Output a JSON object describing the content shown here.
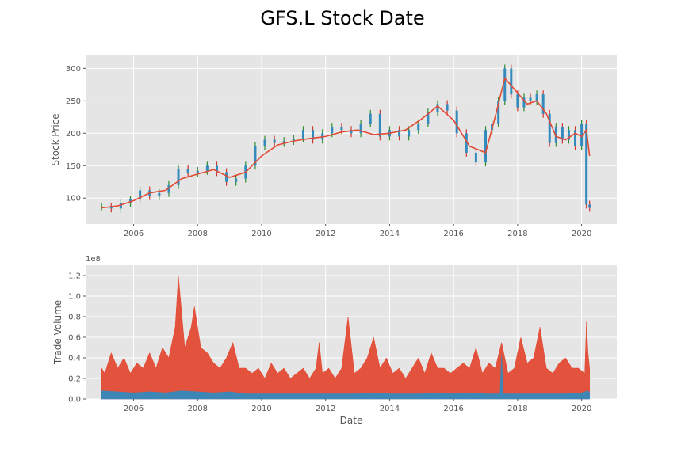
{
  "figure": {
    "title": "GFS.L Stock Date"
  },
  "chart_data": [
    {
      "type": "line",
      "title": "",
      "xlabel": "",
      "ylabel": "Stock Price",
      "xlim": [
        2004.5,
        2021.1
      ],
      "ylim": [
        60,
        320
      ],
      "grid": true,
      "x_ticks": [
        "2006",
        "2008",
        "2010",
        "2012",
        "2014",
        "2016",
        "2018",
        "2020"
      ],
      "y_ticks": [
        "100",
        "150",
        "200",
        "250",
        "300"
      ],
      "series": [
        {
          "style": "candlestick",
          "color_up": "#2e8b2e",
          "color_down": "#d0342c",
          "color_body": "#348abd",
          "x": [
            2005.0,
            2005.3,
            2005.6,
            2005.9,
            2006.2,
            2006.5,
            2006.8,
            2007.1,
            2007.4,
            2007.7,
            2008.0,
            2008.3,
            2008.6,
            2008.9,
            2009.2,
            2009.5,
            2009.8,
            2010.1,
            2010.4,
            2010.7,
            2011.0,
            2011.3,
            2011.6,
            2011.9,
            2012.2,
            2012.5,
            2012.8,
            2013.1,
            2013.4,
            2013.7,
            2014.0,
            2014.3,
            2014.6,
            2014.9,
            2015.2,
            2015.5,
            2015.8,
            2016.1,
            2016.4,
            2016.7,
            2017.0,
            2017.2,
            2017.4,
            2017.6,
            2017.8,
            2018.0,
            2018.2,
            2018.4,
            2018.6,
            2018.8,
            2019.0,
            2019.2,
            2019.4,
            2019.6,
            2019.8,
            2020.0,
            2020.15,
            2020.25
          ],
          "y": [
            87,
            84,
            92,
            98,
            112,
            103,
            108,
            120,
            145,
            138,
            142,
            150,
            140,
            125,
            130,
            150,
            180,
            190,
            185,
            188,
            192,
            205,
            190,
            200,
            210,
            205,
            200,
            215,
            230,
            195,
            205,
            195,
            205,
            215,
            232,
            245,
            235,
            200,
            170,
            155,
            205,
            215,
            250,
            300,
            260,
            240,
            255,
            250,
            260,
            230,
            185,
            210,
            190,
            205,
            180,
            215,
            90,
            85
          ]
        },
        {
          "name": "",
          "style": "moving-average",
          "color": "#e24a33",
          "x": [
            2005.0,
            2005.5,
            2006.0,
            2006.5,
            2007.0,
            2007.5,
            2008.0,
            2008.5,
            2009.0,
            2009.5,
            2010.0,
            2010.5,
            2011.0,
            2011.5,
            2012.0,
            2012.5,
            2013.0,
            2013.5,
            2014.0,
            2014.5,
            2015.0,
            2015.5,
            2016.0,
            2016.5,
            2017.0,
            2017.3,
            2017.6,
            2018.0,
            2018.3,
            2018.6,
            2018.9,
            2019.2,
            2019.5,
            2019.8,
            2020.0,
            2020.15,
            2020.25
          ],
          "y": [
            85,
            88,
            96,
            108,
            112,
            130,
            137,
            144,
            132,
            140,
            165,
            182,
            188,
            192,
            195,
            202,
            205,
            198,
            200,
            205,
            222,
            242,
            220,
            180,
            170,
            225,
            285,
            262,
            245,
            250,
            230,
            195,
            190,
            200,
            195,
            205,
            165
          ]
        }
      ]
    },
    {
      "type": "area",
      "title": "",
      "xlabel": "Date",
      "ylabel": "Trade Volume",
      "offset_label": "1e8",
      "xlim": [
        2004.5,
        2021.1
      ],
      "ylim": [
        0,
        1.3
      ],
      "grid": true,
      "x_ticks": [
        "2006",
        "2008",
        "2010",
        "2012",
        "2014",
        "2016",
        "2018",
        "2020"
      ],
      "y_ticks": [
        "0.0",
        "0.2",
        "0.4",
        "0.6",
        "0.8",
        "1.0",
        "1.2"
      ],
      "series": [
        {
          "name": "",
          "color": "#e24a33",
          "x": [
            2005.0,
            2005.1,
            2005.3,
            2005.5,
            2005.7,
            2005.9,
            2006.1,
            2006.3,
            2006.5,
            2006.7,
            2006.9,
            2007.1,
            2007.3,
            2007.4,
            2007.6,
            2007.8,
            2007.9,
            2008.1,
            2008.3,
            2008.5,
            2008.7,
            2008.9,
            2009.1,
            2009.3,
            2009.5,
            2009.7,
            2009.9,
            2010.1,
            2010.3,
            2010.5,
            2010.7,
            2010.9,
            2011.1,
            2011.3,
            2011.5,
            2011.7,
            2011.8,
            2011.9,
            2012.1,
            2012.3,
            2012.5,
            2012.7,
            2012.9,
            2013.1,
            2013.3,
            2013.5,
            2013.7,
            2013.9,
            2014.1,
            2014.3,
            2014.5,
            2014.7,
            2014.9,
            2015.1,
            2015.3,
            2015.5,
            2015.7,
            2015.9,
            2016.1,
            2016.3,
            2016.5,
            2016.7,
            2016.9,
            2017.1,
            2017.3,
            2017.5,
            2017.7,
            2017.9,
            2018.1,
            2018.3,
            2018.5,
            2018.7,
            2018.9,
            2019.1,
            2019.3,
            2019.5,
            2019.7,
            2019.9,
            2020.1,
            2020.15,
            2020.2,
            2020.25
          ],
          "y": [
            0.3,
            0.25,
            0.45,
            0.3,
            0.4,
            0.25,
            0.35,
            0.3,
            0.45,
            0.3,
            0.5,
            0.4,
            0.7,
            1.2,
            0.5,
            0.7,
            0.9,
            0.5,
            0.45,
            0.35,
            0.3,
            0.4,
            0.55,
            0.3,
            0.3,
            0.25,
            0.3,
            0.2,
            0.35,
            0.25,
            0.3,
            0.2,
            0.25,
            0.3,
            0.2,
            0.3,
            0.55,
            0.25,
            0.3,
            0.2,
            0.3,
            0.8,
            0.25,
            0.3,
            0.4,
            0.6,
            0.3,
            0.4,
            0.25,
            0.3,
            0.2,
            0.3,
            0.4,
            0.25,
            0.45,
            0.3,
            0.3,
            0.25,
            0.3,
            0.35,
            0.3,
            0.5,
            0.25,
            0.35,
            0.3,
            0.55,
            0.25,
            0.3,
            0.6,
            0.35,
            0.4,
            0.7,
            0.3,
            0.25,
            0.35,
            0.4,
            0.3,
            0.3,
            0.25,
            0.75,
            0.45,
            0.3
          ]
        },
        {
          "name": "",
          "color": "#348abd",
          "x": [
            2005.0,
            2005.5,
            2006.0,
            2006.5,
            2007.0,
            2007.5,
            2008.0,
            2008.5,
            2009.0,
            2009.5,
            2010.0,
            2010.5,
            2011.0,
            2011.5,
            2012.0,
            2012.5,
            2013.0,
            2013.5,
            2014.0,
            2014.5,
            2015.0,
            2015.5,
            2016.0,
            2016.5,
            2017.0,
            2017.45,
            2017.5,
            2017.55,
            2018.0,
            2018.5,
            2019.0,
            2019.5,
            2020.0,
            2020.2,
            2020.25
          ],
          "y": [
            0.08,
            0.07,
            0.06,
            0.07,
            0.06,
            0.08,
            0.07,
            0.06,
            0.07,
            0.05,
            0.05,
            0.05,
            0.05,
            0.05,
            0.05,
            0.05,
            0.05,
            0.06,
            0.05,
            0.05,
            0.05,
            0.06,
            0.05,
            0.06,
            0.05,
            0.05,
            0.43,
            0.05,
            0.05,
            0.05,
            0.05,
            0.05,
            0.06,
            0.08,
            0.06
          ]
        }
      ]
    }
  ]
}
